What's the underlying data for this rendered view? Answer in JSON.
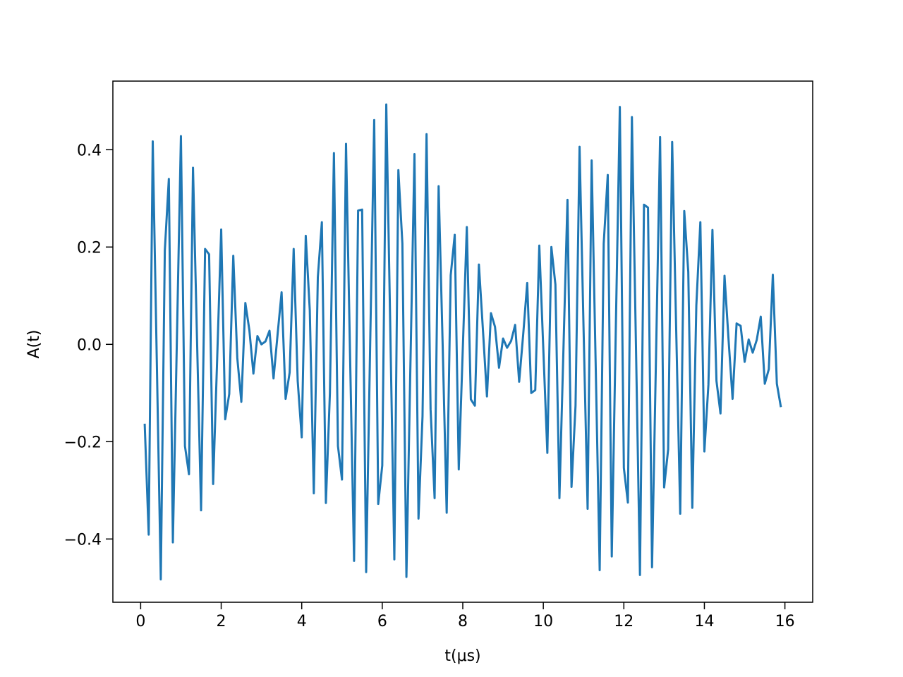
{
  "chart_data": {
    "type": "line",
    "xlabel": "t(μs)",
    "ylabel": "A(t)",
    "color": "#1f77b4",
    "x": [
      0.1,
      0.2,
      0.3,
      0.4,
      0.5,
      0.6,
      0.7,
      0.8,
      0.9,
      1.0,
      1.1,
      1.2,
      1.3,
      1.4,
      1.5,
      1.6,
      1.7,
      1.8,
      1.9,
      2.0,
      2.1,
      2.2,
      2.3,
      2.4,
      2.5,
      2.6,
      2.7,
      2.8,
      2.9,
      3.0,
      3.1,
      3.2,
      3.3,
      3.4,
      3.5,
      3.6,
      3.7,
      3.8,
      3.9,
      4.0,
      4.1,
      4.2,
      4.3,
      4.4,
      4.5,
      4.6,
      4.7,
      4.8,
      4.9,
      5.0,
      5.1,
      5.2,
      5.3,
      5.4,
      5.5,
      5.6,
      5.7,
      5.8,
      5.9,
      6.0,
      6.1,
      6.2,
      6.3,
      6.4,
      6.5,
      6.6,
      6.7,
      6.8,
      6.9,
      7.0,
      7.1,
      7.2,
      7.3,
      7.4,
      7.5,
      7.6,
      7.7,
      7.8,
      7.9,
      8.0,
      8.1,
      8.2,
      8.3,
      8.4,
      8.5,
      8.6,
      8.7,
      8.8,
      8.9,
      9.0,
      9.1,
      9.2,
      9.3,
      9.4,
      9.5,
      9.6,
      9.7,
      9.8,
      9.9,
      10.0,
      10.1,
      10.2,
      10.3,
      10.4,
      10.5,
      10.6,
      10.7,
      10.8,
      10.9,
      11.0,
      11.1,
      11.2,
      11.3,
      11.4,
      11.5,
      11.6,
      11.7,
      11.8,
      11.9,
      12.0,
      12.1,
      12.2,
      12.3,
      12.4,
      12.5,
      12.6,
      12.7,
      12.8,
      12.9,
      13.0,
      13.1,
      13.2,
      13.3,
      13.4,
      13.5,
      13.6,
      13.7,
      13.8,
      13.9,
      14.0,
      14.1,
      14.2,
      14.3,
      14.4,
      14.5,
      14.6,
      14.7,
      14.8,
      14.9,
      15.0,
      15.1,
      15.2,
      15.3,
      15.4,
      15.5,
      15.6,
      15.7,
      15.8,
      15.9
    ],
    "values": [
      -0.163,
      -0.391,
      0.417,
      -0.03,
      -0.483,
      0.193,
      0.34,
      -0.407,
      0.01,
      0.428,
      -0.209,
      -0.267,
      0.363,
      0.01,
      -0.341,
      0.196,
      0.185,
      -0.287,
      -0.03,
      0.236,
      -0.154,
      -0.102,
      0.182,
      -0.028,
      -0.118,
      0.085,
      0.029,
      -0.06,
      0.017,
      0.0,
      0.006,
      0.028,
      -0.07,
      0.02,
      0.107,
      -0.112,
      -0.058,
      0.196,
      -0.075,
      -0.191,
      0.223,
      0.07,
      -0.306,
      0.138,
      0.251,
      -0.326,
      -0.1,
      0.393,
      -0.209,
      -0.278,
      0.412,
      -0.02,
      -0.445,
      0.275,
      0.277,
      -0.468,
      0.0,
      0.461,
      -0.328,
      -0.249,
      0.493,
      0.03,
      -0.442,
      0.358,
      0.207,
      -0.478,
      -0.04,
      0.391,
      -0.358,
      -0.148,
      0.432,
      -0.133,
      -0.316,
      0.325,
      0.0,
      -0.346,
      0.142,
      0.225,
      -0.257,
      -0.01,
      0.241,
      -0.113,
      -0.126,
      0.164,
      0.03,
      -0.107,
      0.064,
      0.036,
      -0.048,
      0.012,
      -0.007,
      0.007,
      0.04,
      -0.077,
      0.02,
      0.126,
      -0.1,
      -0.094,
      0.203,
      -0.01,
      -0.223,
      0.2,
      0.123,
      -0.316,
      -0.01,
      0.297,
      -0.293,
      -0.126,
      0.406,
      0.03,
      -0.338,
      0.378,
      -0.04,
      -0.464,
      0.207,
      0.348,
      -0.436,
      0.03,
      0.488,
      -0.254,
      -0.325,
      0.467,
      0.0,
      -0.474,
      0.287,
      0.281,
      -0.458,
      -0.02,
      0.426,
      -0.294,
      -0.216,
      0.416,
      0.03,
      -0.348,
      0.274,
      0.149,
      -0.336,
      0.08,
      0.251,
      -0.22,
      -0.083,
      0.235,
      -0.075,
      -0.142,
      0.141,
      0.01,
      -0.112,
      0.043,
      0.038,
      -0.036,
      0.01,
      -0.017,
      0.009,
      0.057,
      -0.081,
      -0.051,
      0.143,
      -0.081,
      -0.129
    ],
    "xlim": [
      -0.69,
      16.69
    ],
    "ylim": [
      -0.53,
      0.541
    ],
    "xticks": [
      0,
      2,
      4,
      6,
      8,
      10,
      12,
      14,
      16
    ],
    "yticks": [
      {
        "value": -0.4,
        "label": "−0.4"
      },
      {
        "value": -0.2,
        "label": "−0.2"
      },
      {
        "value": 0.0,
        "label": "0.0"
      },
      0.2,
      0.4
    ],
    "grid": false
  }
}
